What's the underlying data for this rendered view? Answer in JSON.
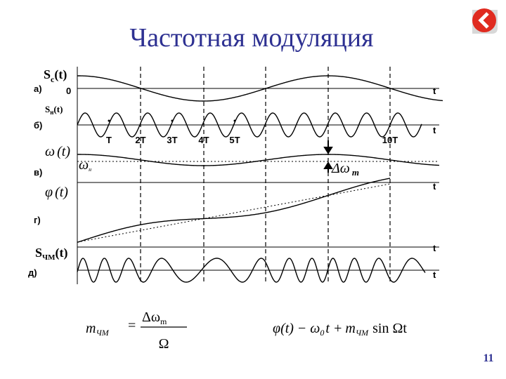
{
  "header": {
    "title": "Частотная модуляция"
  },
  "page_number": "11",
  "panels": [
    {
      "label": "а)",
      "signal": {
        "main": "S",
        "sub": "c",
        "arg": "(t)"
      },
      "origin": "0",
      "axis": "t"
    },
    {
      "label": "б)",
      "signal": {
        "main": "S",
        "sub": "н",
        "arg": "(t)"
      },
      "axis": "t",
      "periods": [
        "T",
        "2T",
        "3T",
        "4T",
        "5T",
        "10T"
      ]
    },
    {
      "label": "в)",
      "signal": {
        "main": "ω",
        "arg": "(t)"
      },
      "carrier": {
        "main": "ω",
        "sub": "н"
      },
      "deviation": {
        "main": "Δω",
        "sub": "m"
      },
      "axis": "t"
    },
    {
      "label": "г)",
      "signal": {
        "main": "φ",
        "arg": "(t)"
      },
      "axis": "t"
    },
    {
      "label": "д)",
      "signal": {
        "main": "S",
        "sub": "ЧМ",
        "arg": "(t)"
      },
      "axis": "t"
    }
  ],
  "formulas": [
    {
      "lhs": {
        "main": "m",
        "sub": "ЧМ"
      },
      "eq": "=",
      "numerator": {
        "main": "Δω",
        "sub": "m"
      },
      "denominator": "Ω"
    },
    {
      "lhs": "φ(t)",
      "sign": "−",
      "w": {
        "main": "ω",
        "sub": "0"
      },
      "t": "t +",
      "m": {
        "main": "m",
        "sub": "ЧМ"
      },
      "sin": "sin Ωt"
    }
  ]
}
